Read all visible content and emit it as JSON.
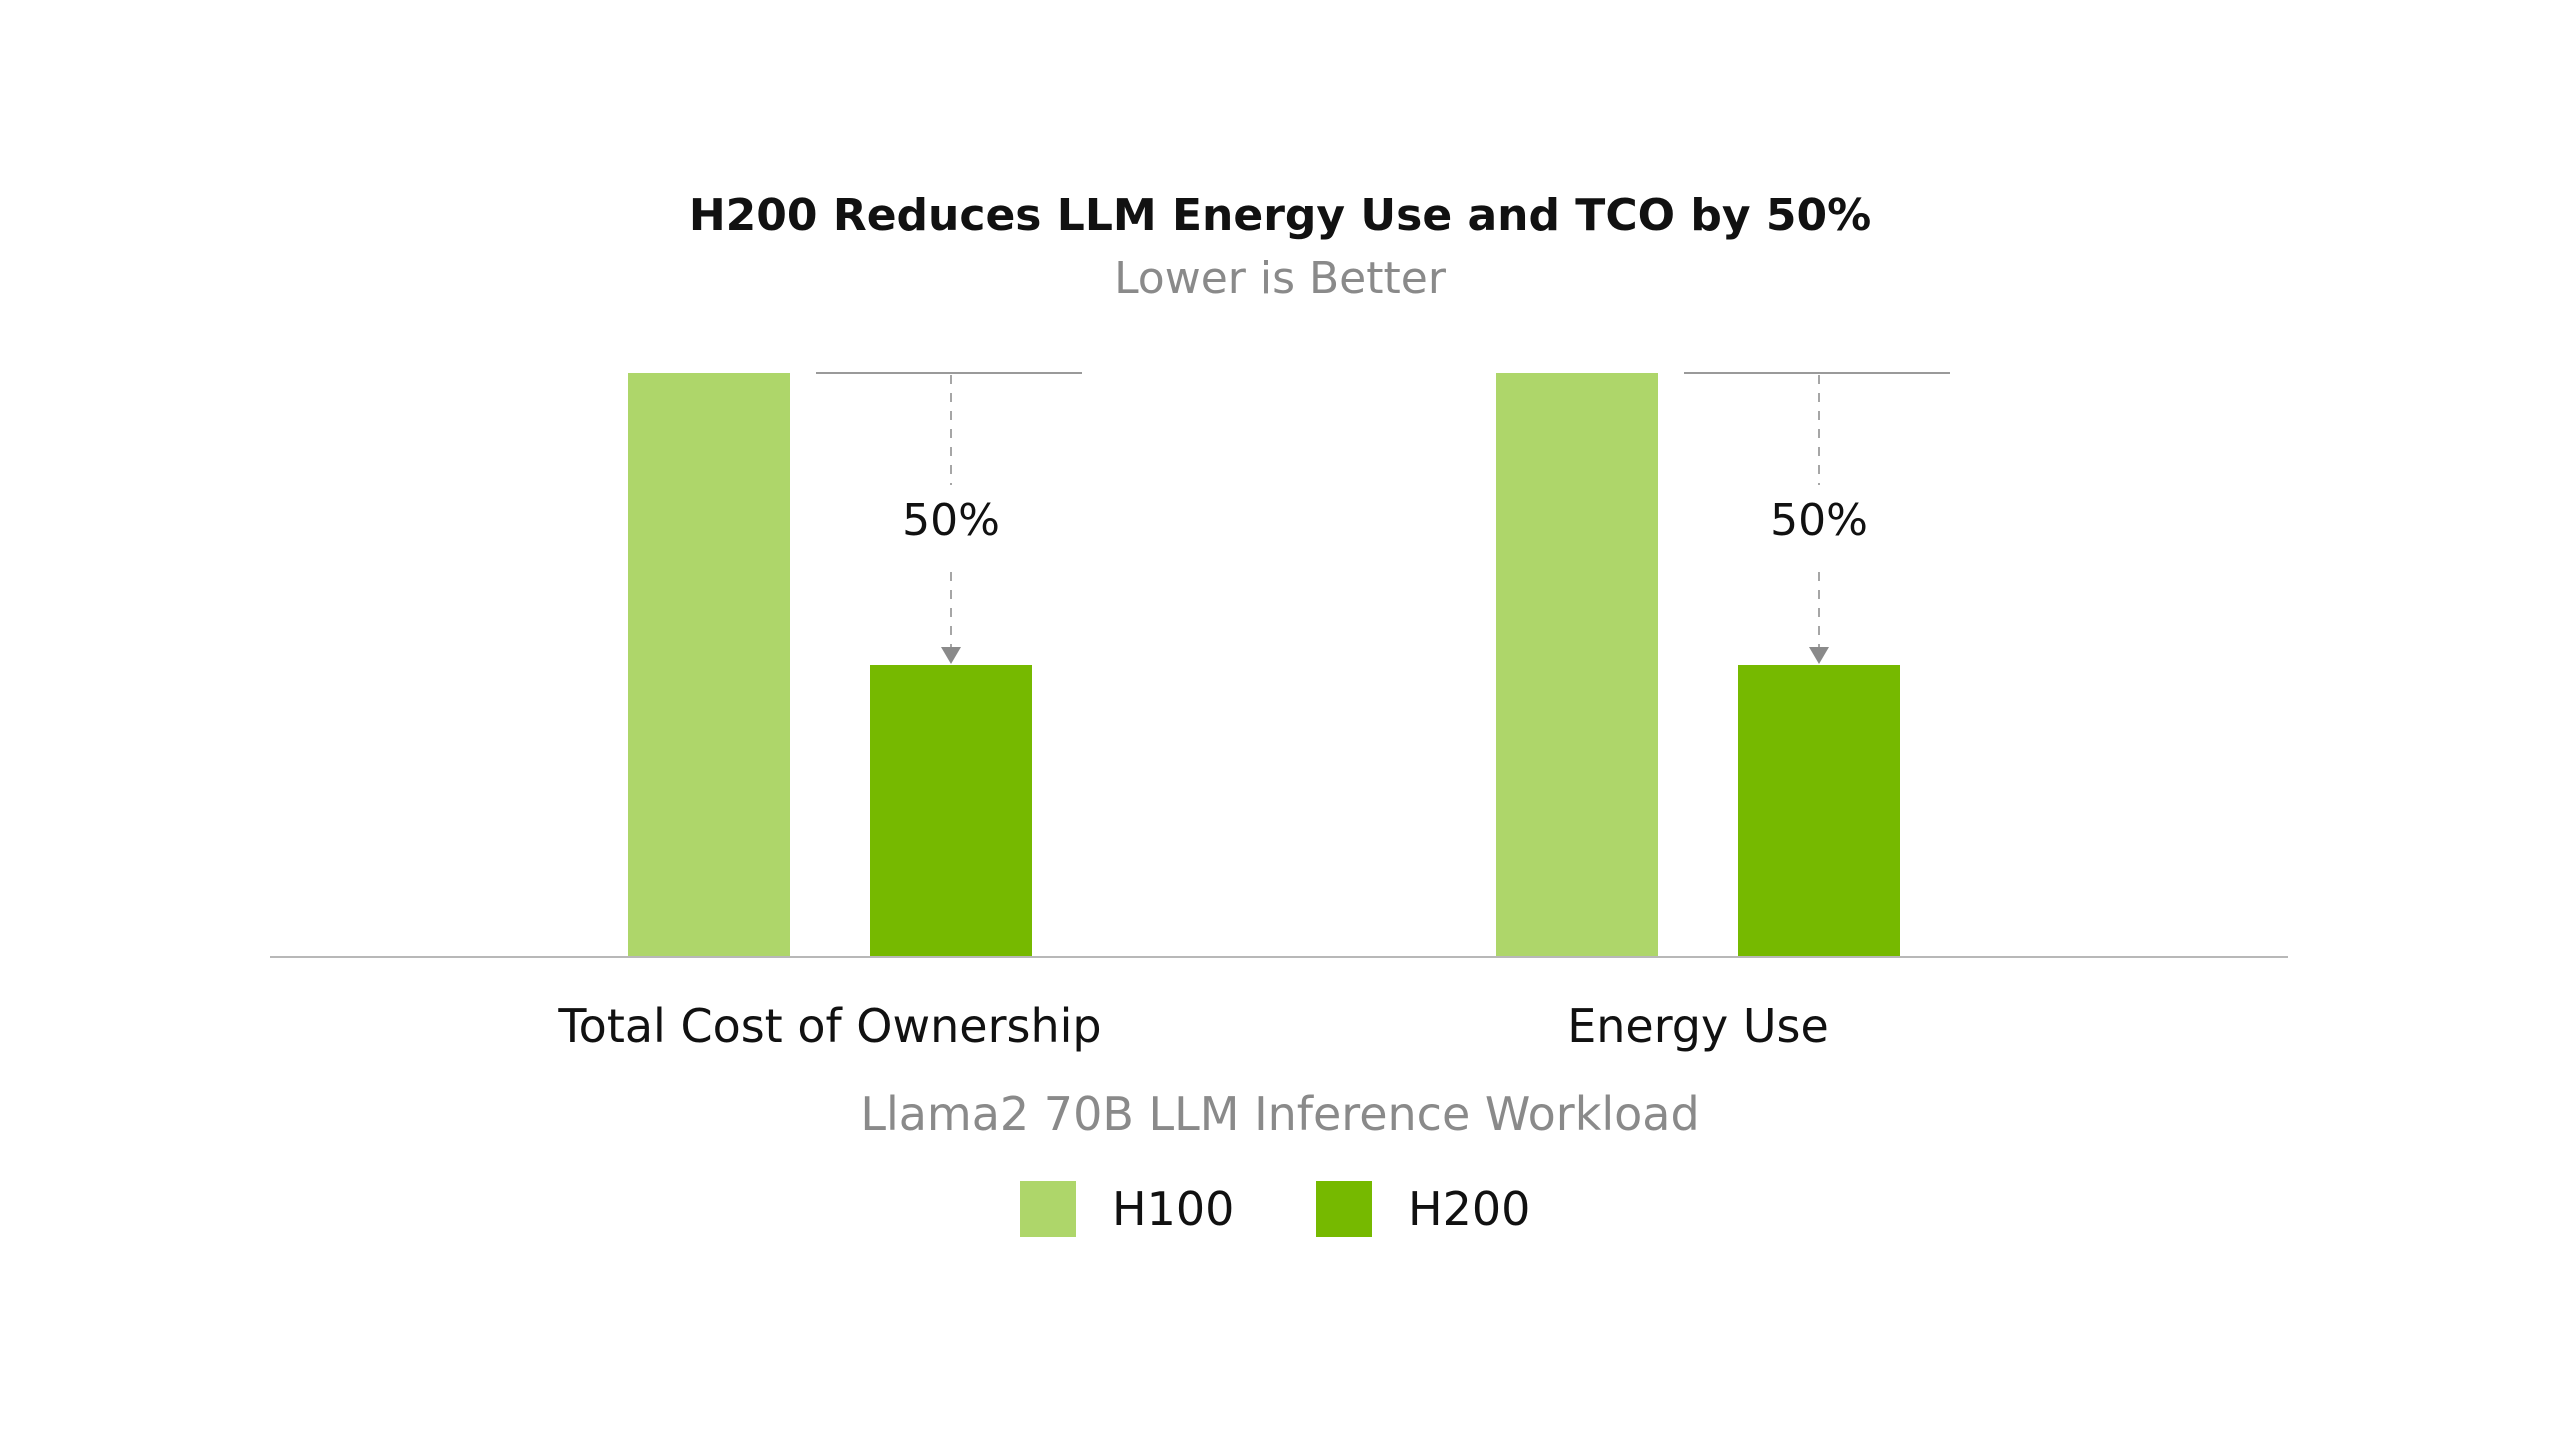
{
  "chart_data": {
    "type": "bar",
    "title": "H200 Reduces LLM Energy Use and TCO by 50%",
    "subtitle": "Lower is Better",
    "xlabel": "Llama2 70B LLM Inference Workload",
    "ylabel": "",
    "categories": [
      "Total Cost of Ownership",
      "Energy Use"
    ],
    "series": [
      {
        "name": "H100",
        "values": [
          1.0,
          1.0
        ],
        "color": "#aed66a"
      },
      {
        "name": "H200",
        "values": [
          0.5,
          0.5
        ],
        "color": "#76b900"
      }
    ],
    "ylim": [
      0,
      1
    ],
    "grid": false,
    "legend": "bottom-center",
    "annotations": [
      {
        "category": "Total Cost of Ownership",
        "label": "50%"
      },
      {
        "category": "Energy Use",
        "label": "50%"
      }
    ]
  }
}
